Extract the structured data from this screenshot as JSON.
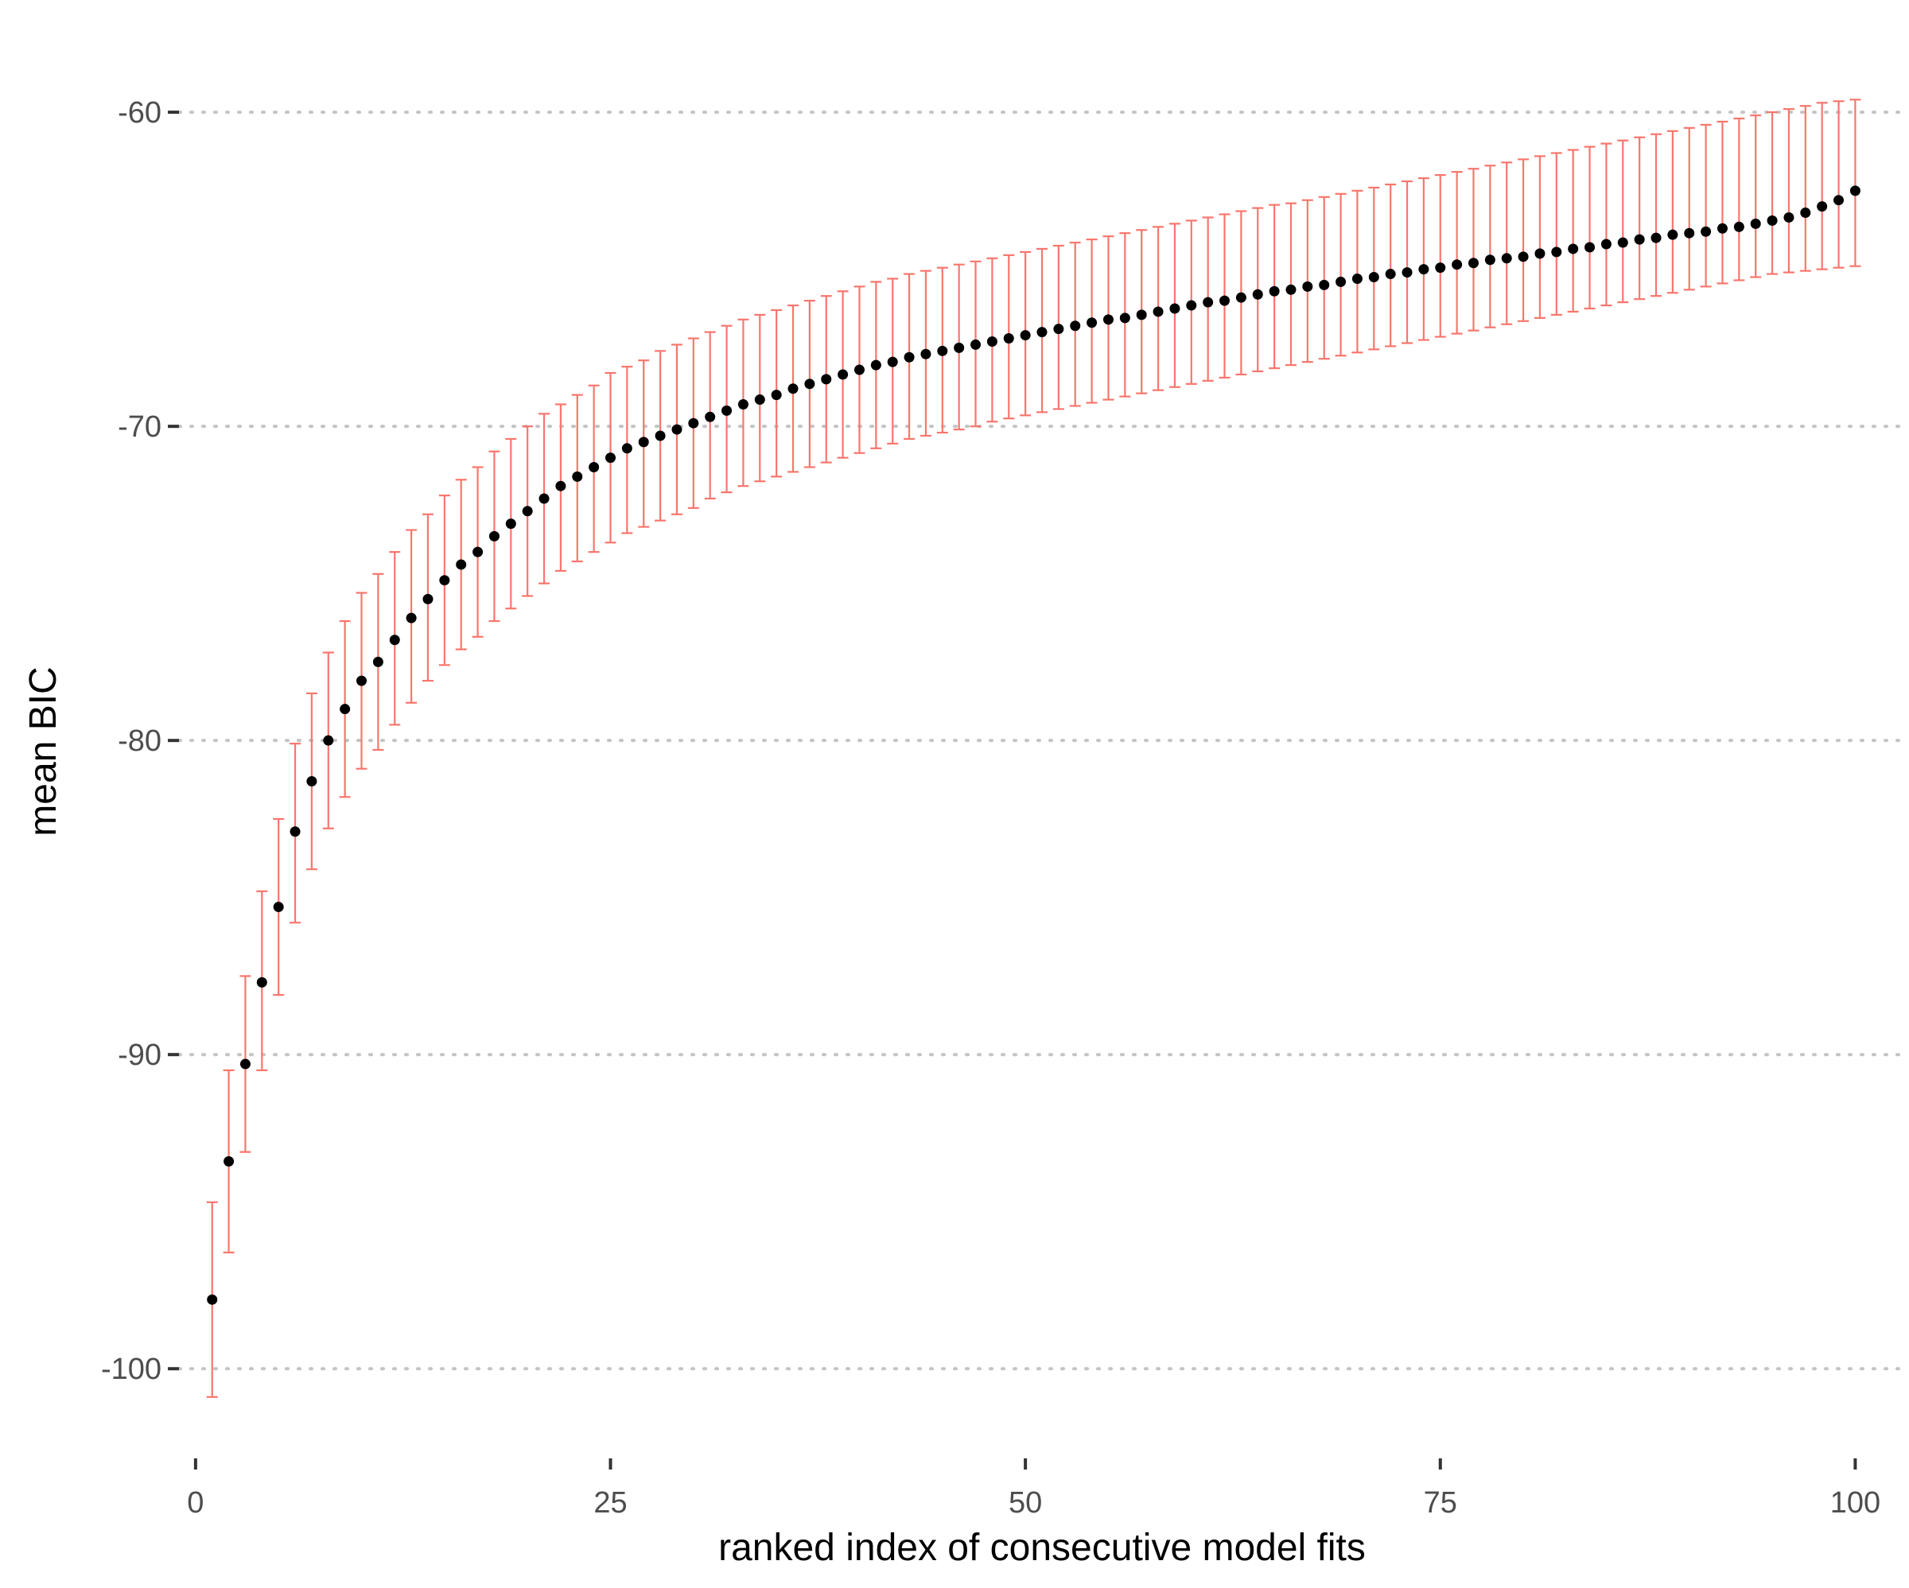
{
  "chart_data": {
    "type": "scatter",
    "title": "",
    "xlabel": "ranked index of consecutive model fits",
    "ylabel": "mean BIC",
    "xlim": [
      -1.0,
      103.0
    ],
    "ylim": [
      -102.5,
      -58.2
    ],
    "x_ticks": [
      0,
      25,
      50,
      75,
      100
    ],
    "x_tick_labels": [
      "0",
      "25",
      "50",
      "75",
      "100"
    ],
    "y_ticks": [
      -100,
      -90,
      -80,
      -70,
      -60
    ],
    "y_tick_labels": [
      "-100",
      "-90",
      "-80",
      "-70",
      "-60"
    ],
    "grid": {
      "horizontal_major": true,
      "style": "dotted",
      "vertical": false
    },
    "legend": "none",
    "colors": {
      "points": "#000000",
      "error_bars": "#f8766d",
      "grid": "#c4c4c4",
      "tick_labels": "#4d4d4d",
      "axis_titles": "#000000"
    },
    "series": [
      {
        "x": [
          1,
          2,
          3,
          4,
          5,
          6,
          7,
          8,
          9,
          10,
          11,
          12,
          13,
          14,
          15,
          16,
          17,
          18,
          19,
          20,
          21,
          22,
          23,
          24,
          25,
          26,
          27,
          28,
          29,
          30,
          31,
          32,
          33,
          34,
          35,
          36,
          37,
          38,
          39,
          40,
          41,
          42,
          43,
          44,
          45,
          46,
          47,
          48,
          49,
          50,
          51,
          52,
          53,
          54,
          55,
          56,
          57,
          58,
          59,
          60,
          61,
          62,
          63,
          64,
          65,
          66,
          67,
          68,
          69,
          70,
          71,
          72,
          73,
          74,
          75,
          76,
          77,
          78,
          79,
          80,
          81,
          82,
          83,
          84,
          85,
          86,
          87,
          88,
          89,
          90,
          91,
          92,
          93,
          94,
          95,
          96,
          97,
          98,
          99,
          100
        ],
        "y": [
          -97.8,
          -93.4,
          -90.3,
          -87.7,
          -85.3,
          -82.9,
          -81.3,
          -80.0,
          -79.0,
          -78.1,
          -77.5,
          -76.8,
          -76.1,
          -75.5,
          -74.9,
          -74.4,
          -74.0,
          -73.5,
          -73.1,
          -72.7,
          -72.3,
          -71.9,
          -71.6,
          -71.3,
          -71.0,
          -70.7,
          -70.5,
          -70.3,
          -70.1,
          -69.9,
          -69.7,
          -69.5,
          -69.3,
          -69.15,
          -69.0,
          -68.8,
          -68.65,
          -68.5,
          -68.35,
          -68.2,
          -68.05,
          -67.95,
          -67.8,
          -67.7,
          -67.6,
          -67.5,
          -67.4,
          -67.3,
          -67.2,
          -67.1,
          -67.0,
          -66.9,
          -66.8,
          -66.7,
          -66.6,
          -66.55,
          -66.45,
          -66.35,
          -66.25,
          -66.15,
          -66.05,
          -66.0,
          -65.9,
          -65.8,
          -65.7,
          -65.65,
          -65.55,
          -65.5,
          -65.4,
          -65.3,
          -65.25,
          -65.15,
          -65.1,
          -65.0,
          -64.95,
          -64.85,
          -64.8,
          -64.7,
          -64.65,
          -64.6,
          -64.5,
          -64.45,
          -64.35,
          -64.3,
          -64.2,
          -64.15,
          -64.05,
          -64.0,
          -63.9,
          -63.85,
          -63.8,
          -63.7,
          -63.65,
          -63.55,
          -63.45,
          -63.35,
          -63.2,
          -63.0,
          -62.8,
          -62.5
        ],
        "error_low": [
          -100.9,
          -96.3,
          -93.1,
          -90.5,
          -88.1,
          -85.8,
          -84.1,
          -82.8,
          -81.8,
          -80.9,
          -80.3,
          -79.5,
          -78.8,
          -78.1,
          -77.6,
          -77.1,
          -76.7,
          -76.2,
          -75.8,
          -75.4,
          -75.0,
          -74.6,
          -74.3,
          -74.0,
          -73.7,
          -73.4,
          -73.2,
          -73.0,
          -72.8,
          -72.6,
          -72.3,
          -72.1,
          -71.9,
          -71.75,
          -71.6,
          -71.45,
          -71.3,
          -71.15,
          -71.0,
          -70.85,
          -70.7,
          -70.55,
          -70.4,
          -70.3,
          -70.2,
          -70.1,
          -70.0,
          -69.85,
          -69.75,
          -69.65,
          -69.55,
          -69.45,
          -69.35,
          -69.25,
          -69.15,
          -69.05,
          -68.95,
          -68.85,
          -68.75,
          -68.65,
          -68.55,
          -68.45,
          -68.35,
          -68.25,
          -68.15,
          -68.05,
          -67.95,
          -67.85,
          -67.75,
          -67.65,
          -67.55,
          -67.45,
          -67.35,
          -67.25,
          -67.15,
          -67.05,
          -66.95,
          -66.85,
          -66.75,
          -66.65,
          -66.55,
          -66.45,
          -66.35,
          -66.25,
          -66.15,
          -66.05,
          -65.95,
          -65.85,
          -65.75,
          -65.65,
          -65.55,
          -65.45,
          -65.35,
          -65.25,
          -65.15,
          -65.1,
          -65.05,
          -65.0,
          -64.95,
          -64.9
        ],
        "error_high": [
          -94.7,
          -90.5,
          -87.5,
          -84.8,
          -82.5,
          -80.1,
          -78.5,
          -77.2,
          -76.2,
          -75.3,
          -74.7,
          -74.0,
          -73.3,
          -72.8,
          -72.2,
          -71.7,
          -71.3,
          -70.8,
          -70.4,
          -70.0,
          -69.6,
          -69.3,
          -69.0,
          -68.7,
          -68.3,
          -68.1,
          -67.9,
          -67.6,
          -67.4,
          -67.2,
          -67.0,
          -66.8,
          -66.6,
          -66.45,
          -66.3,
          -66.15,
          -66.0,
          -65.85,
          -65.7,
          -65.55,
          -65.4,
          -65.3,
          -65.15,
          -65.05,
          -64.95,
          -64.85,
          -64.75,
          -64.65,
          -64.55,
          -64.45,
          -64.35,
          -64.25,
          -64.15,
          -64.05,
          -63.95,
          -63.85,
          -63.75,
          -63.65,
          -63.55,
          -63.45,
          -63.35,
          -63.25,
          -63.15,
          -63.05,
          -62.95,
          -62.9,
          -62.8,
          -62.7,
          -62.6,
          -62.5,
          -62.4,
          -62.3,
          -62.2,
          -62.1,
          -62.0,
          -61.9,
          -61.8,
          -61.7,
          -61.6,
          -61.5,
          -61.4,
          -61.3,
          -61.2,
          -61.1,
          -61.0,
          -60.9,
          -60.8,
          -60.7,
          -60.6,
          -60.5,
          -60.4,
          -60.3,
          -60.2,
          -60.1,
          -60.0,
          -59.9,
          -59.8,
          -59.7,
          -59.65,
          -59.6
        ]
      }
    ]
  }
}
